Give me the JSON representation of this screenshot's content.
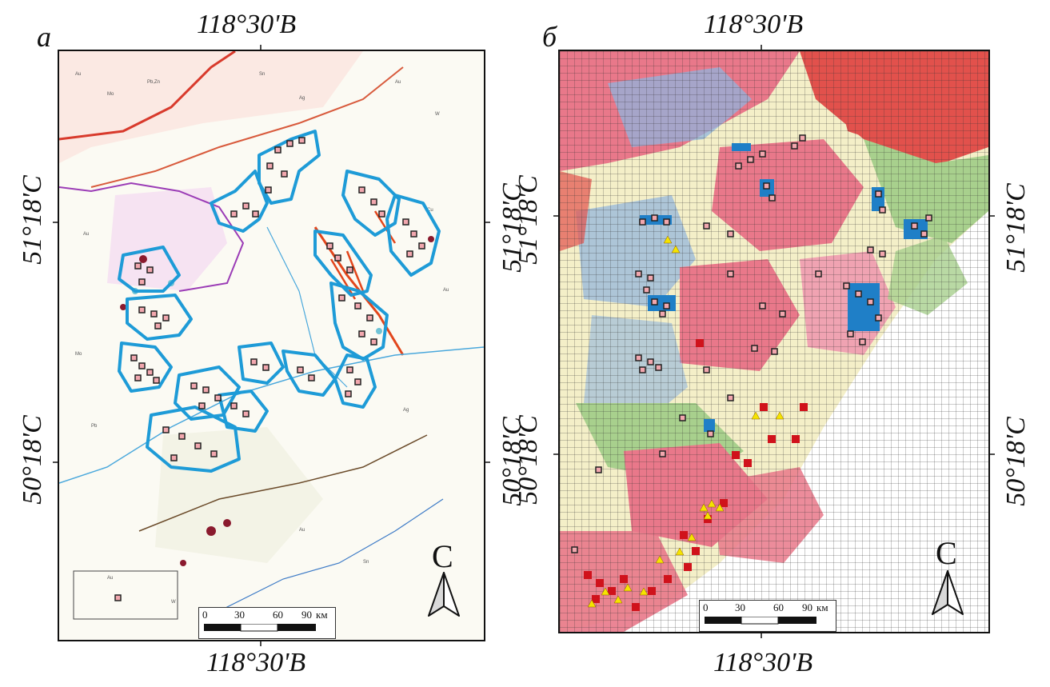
{
  "panels": [
    {
      "letter": "а",
      "top_label": "118°30'В",
      "bottom_label": "118°30'В",
      "left_upper_label": "51°18'С",
      "left_lower_label": "50°18'С",
      "right_upper_label": "51°18'С",
      "right_lower_label": "50°18'С",
      "north_letter": "С",
      "scale": {
        "ticks": [
          "0",
          "30",
          "60",
          "90"
        ],
        "unit": "км"
      }
    },
    {
      "letter": "б",
      "top_label": "118°30'В",
      "bottom_label": "118°30'В",
      "left_upper_label": "51°18'С",
      "left_lower_label": "50°18'С",
      "right_upper_label": "51°18'С",
      "right_lower_label": "50°18'С",
      "north_letter": "С",
      "scale": {
        "ticks": [
          "0",
          "30",
          "60",
          "90"
        ],
        "unit": "км"
      }
    }
  ],
  "colors": {
    "outline": "#1e9bd7",
    "marker_fill": "#f2a7ae",
    "marker_stroke": "#222222",
    "triangle_fill": "#f5e400",
    "triangle_bg": "#d0121b",
    "grid": "#333333",
    "geology_pink": "#e9788a",
    "geology_red": "#e2514c",
    "geology_blue": "#8fb4dd",
    "geology_green": "#a8d08d",
    "geology_cream": "#f4efc8"
  }
}
